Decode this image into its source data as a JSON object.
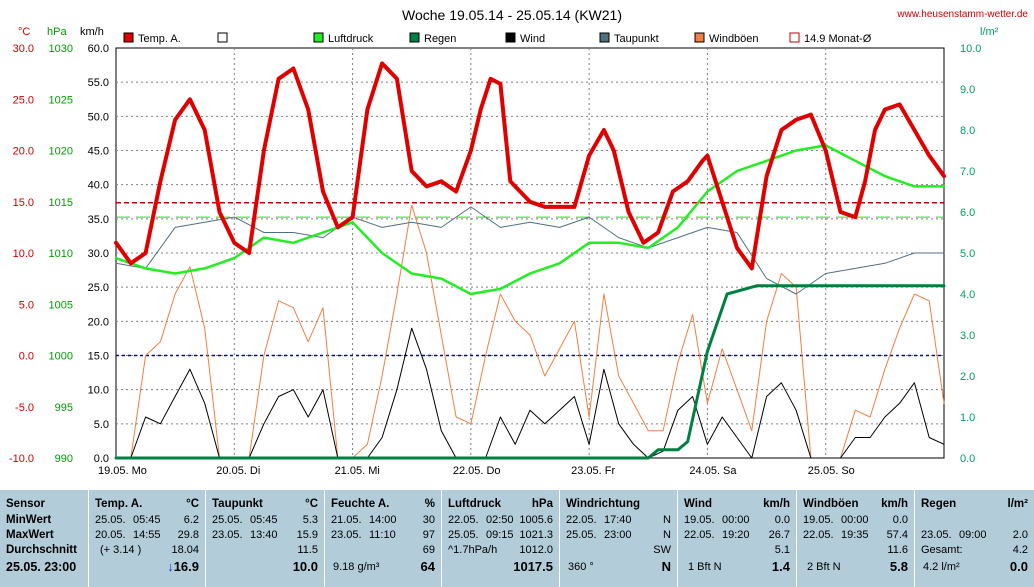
{
  "header": {
    "title": "Woche 19.05.14 - 25.05.14 (KW21)",
    "website": "www.heusenstamm-wetter.de",
    "unit_celsius": "°C",
    "unit_hpa": "hPa",
    "unit_kmh": "km/h",
    "unit_rain": "l/m²"
  },
  "legend": [
    {
      "label": "Temp. A.",
      "color": "#e00000"
    },
    {
      "label": "",
      "color": "#ffffff"
    },
    {
      "label": "Luftdruck",
      "color": "#22ee22"
    },
    {
      "label": "Regen",
      "color": "#008040"
    },
    {
      "label": "Wind",
      "color": "#000000"
    },
    {
      "label": "Taupunkt",
      "color": "#507080"
    },
    {
      "label": "Windböen",
      "color": "#f08040"
    },
    {
      "label": "14.9 Monat-Ø",
      "color": "#ffffff"
    }
  ],
  "chart_data": {
    "type": "line",
    "title": "Woche 19.05.14 - 25.05.14 (KW21)",
    "x_axis": {
      "labels": [
        "19.05. Mo",
        "20.05. Di",
        "21.05. Mi",
        "22.05. Do",
        "23.05. Fr",
        "24.05. Sa",
        "25.05. So"
      ],
      "range_hours": [
        0,
        168
      ]
    },
    "y_axes": {
      "temp_c": {
        "range": [
          -10,
          30
        ],
        "ticks": [
          "30.0",
          "25.0",
          "20.0",
          "15.0",
          "10.0",
          "5.0",
          "0.0",
          "-5.0",
          "-10.0"
        ]
      },
      "pressure_hpa": {
        "range": [
          990,
          1030
        ],
        "ticks": [
          "1030",
          "1025",
          "1020",
          "1015",
          "1010",
          "1005",
          "1000",
          "995",
          "990"
        ]
      },
      "speed_kmh": {
        "range": [
          0,
          60
        ],
        "ticks": [
          "60.0",
          "55.0",
          "50.0",
          "45.0",
          "40.0",
          "35.0",
          "30.0",
          "25.0",
          "20.0",
          "15.0",
          "10.0",
          "5.0",
          "0.0"
        ]
      },
      "rain_lm2": {
        "range": [
          0,
          10
        ],
        "ticks": [
          "10.0",
          "9.0",
          "8.0",
          "7.0",
          "6.0",
          "5.0",
          "4.0",
          "3.0",
          "2.0",
          "1.0",
          "0.0"
        ]
      }
    },
    "reference_lines": [
      {
        "name": "14.9 Monat-Ø",
        "unit": "°C",
        "value": 14.9,
        "color": "#c00000"
      },
      {
        "unit": "hPa",
        "value": 1013.5,
        "color": "#22dd22"
      },
      {
        "unit": "°C",
        "value": 0.0,
        "color": "#0000c0"
      }
    ],
    "series": [
      {
        "name": "Temp. A.",
        "unit": "°C",
        "color": "#e00000",
        "x": [
          0,
          3,
          6,
          9,
          12,
          15,
          18,
          21,
          24,
          27,
          30,
          33,
          36,
          39,
          42,
          45,
          48,
          51,
          54,
          57,
          60,
          63,
          66,
          69,
          72,
          74,
          76,
          78,
          80,
          82,
          84,
          87,
          90,
          93,
          96,
          99,
          101,
          104,
          107,
          110,
          113,
          116,
          119,
          120,
          123,
          126,
          129,
          132,
          135,
          138,
          141,
          144,
          147,
          150,
          152,
          154,
          156,
          159,
          162,
          165,
          168
        ],
        "y": [
          11.0,
          9.0,
          10.0,
          17.0,
          23.0,
          25.0,
          22.0,
          14.0,
          11.0,
          10.0,
          20.0,
          27.0,
          28.0,
          24.0,
          16.0,
          12.5,
          13.5,
          24.0,
          28.5,
          27.0,
          18.0,
          16.5,
          17.0,
          16.0,
          20.0,
          24.0,
          27.0,
          26.5,
          17.0,
          16.0,
          15.0,
          14.5,
          14.5,
          14.5,
          19.5,
          22.0,
          20.0,
          14.0,
          11.0,
          12.0,
          16.0,
          17.0,
          19.0,
          19.5,
          15.0,
          10.5,
          8.5,
          17.5,
          22.0,
          23.0,
          23.5,
          20.0,
          14.0,
          13.5,
          17.0,
          22.0,
          24.0,
          24.5,
          22.0,
          19.5,
          17.5
        ]
      },
      {
        "name": "Luftdruck",
        "unit": "hPa",
        "color": "#22ee22",
        "x": [
          0,
          6,
          12,
          18,
          24,
          30,
          36,
          42,
          48,
          54,
          60,
          66,
          72,
          78,
          84,
          90,
          96,
          102,
          108,
          114,
          120,
          126,
          132,
          138,
          144,
          150,
          156,
          162,
          168
        ],
        "y": [
          1009.5,
          1008.5,
          1008.0,
          1008.5,
          1009.5,
          1011.5,
          1011.0,
          1012.0,
          1013.0,
          1010.0,
          1008.0,
          1007.5,
          1006.0,
          1006.5,
          1008.0,
          1009.0,
          1011.0,
          1011.0,
          1010.5,
          1012.5,
          1016.0,
          1018.0,
          1019.0,
          1020.0,
          1020.5,
          1019.0,
          1017.5,
          1016.5,
          1016.5
        ]
      },
      {
        "name": "Taupunkt",
        "unit": "°C",
        "color": "#507080",
        "x": [
          0,
          6,
          12,
          18,
          24,
          30,
          36,
          42,
          48,
          54,
          60,
          66,
          72,
          78,
          84,
          90,
          96,
          102,
          108,
          114,
          120,
          126,
          132,
          138,
          144,
          150,
          156,
          162,
          168
        ],
        "y": [
          9.0,
          8.5,
          12.5,
          13.0,
          13.5,
          12.0,
          12.0,
          11.5,
          13.5,
          12.5,
          13.0,
          12.5,
          14.5,
          12.5,
          13.0,
          12.5,
          13.5,
          11.5,
          10.5,
          11.5,
          12.5,
          12.0,
          7.5,
          6.0,
          8.0,
          8.5,
          9.0,
          10.0,
          10.0
        ]
      },
      {
        "name": "Wind",
        "unit": "km/h",
        "color": "#000000",
        "x": [
          0,
          3,
          6,
          9,
          12,
          15,
          18,
          21,
          24,
          27,
          30,
          33,
          36,
          39,
          42,
          45,
          48,
          51,
          54,
          57,
          60,
          63,
          66,
          69,
          72,
          75,
          78,
          81,
          84,
          87,
          90,
          93,
          96,
          99,
          102,
          105,
          108,
          111,
          114,
          117,
          120,
          123,
          126,
          129,
          132,
          135,
          138,
          141,
          144,
          147,
          150,
          153,
          156,
          159,
          162,
          165,
          168
        ],
        "y": [
          0,
          0,
          6,
          5,
          9,
          13,
          8,
          0,
          0,
          0,
          5,
          9,
          10,
          6,
          10,
          0,
          0,
          0,
          3,
          10,
          19,
          13,
          4,
          0,
          0,
          0,
          6,
          2,
          7,
          5,
          7,
          9,
          2,
          13,
          5,
          2,
          0,
          1,
          7,
          9,
          2,
          6,
          3,
          0,
          9,
          11,
          7,
          0,
          0,
          0,
          3,
          3,
          6,
          8,
          11,
          3,
          2
        ]
      },
      {
        "name": "Windböen",
        "unit": "km/h",
        "color": "#f08040",
        "x": [
          0,
          3,
          6,
          9,
          12,
          15,
          18,
          21,
          24,
          27,
          30,
          33,
          36,
          39,
          42,
          45,
          48,
          51,
          54,
          57,
          60,
          63,
          66,
          69,
          72,
          75,
          78,
          81,
          84,
          87,
          90,
          93,
          96,
          99,
          102,
          105,
          108,
          111,
          114,
          117,
          120,
          123,
          126,
          129,
          132,
          135,
          138,
          141,
          144,
          147,
          150,
          153,
          156,
          159,
          162,
          165,
          168
        ],
        "y": [
          0,
          0,
          15,
          17,
          24,
          28,
          19,
          0,
          0,
          0,
          15,
          23,
          22,
          17,
          22,
          0,
          0,
          2,
          12,
          24,
          37,
          30,
          18,
          6,
          5,
          15,
          24,
          20,
          18,
          12,
          16,
          20,
          6,
          24,
          12,
          8,
          4,
          4,
          14,
          21,
          8,
          16,
          10,
          4,
          20,
          27,
          25,
          0,
          0,
          0,
          7,
          6,
          13,
          19,
          24,
          23,
          8
        ]
      },
      {
        "name": "Regen",
        "unit": "l/m²",
        "color": "#008040",
        "x": [
          0,
          108,
          110,
          112,
          114,
          116,
          120,
          124,
          130,
          140,
          150,
          160,
          168
        ],
        "y": [
          0,
          0,
          0.2,
          0.2,
          0.2,
          0.4,
          2.6,
          4.0,
          4.2,
          4.2,
          4.2,
          4.2,
          4.2
        ]
      }
    ]
  },
  "panel": {
    "sensor": {
      "header": "Sensor",
      "min": "MinWert",
      "max": "MaxWert",
      "avg": "Durchschnitt",
      "now": "25.05. 23:00"
    },
    "temp": {
      "header": "Temp. A.",
      "unit": "°C",
      "min_date": "25.05.",
      "min_time": "05:45",
      "min_val": "6.2",
      "max_date": "20.05.",
      "max_time": "14:55",
      "max_val": "29.8",
      "avg_note": "(+ 3.14 )",
      "avg_val": "18.04",
      "trend": "↓",
      "now": "16.9"
    },
    "dew": {
      "header": "Taupunkt",
      "unit": "°C",
      "min_date": "25.05.",
      "min_time": "05:45",
      "min_val": "5.3",
      "max_date": "23.05.",
      "max_time": "13:40",
      "max_val": "15.9",
      "avg_val": "11.5",
      "now": "10.0"
    },
    "hum": {
      "header": "Feuchte A.",
      "unit": "%",
      "min_date": "21.05.",
      "min_time": "14:00",
      "min_val": "30",
      "max_date": "23.05.",
      "max_time": "11:10",
      "max_val": "97",
      "avg_val": "69",
      "abs": "9.18 g/m³",
      "now": "64"
    },
    "press": {
      "header": "Luftdruck",
      "unit": "hPa",
      "min_date": "22.05.",
      "min_time": "02:50",
      "min_val": "1005.6",
      "max_date": "25.05.",
      "max_time": "09:15",
      "max_val": "1021.3",
      "avg_note": "^1.7hPa/h",
      "avg_val": "1012.0",
      "now": "1017.5"
    },
    "dir": {
      "header": "Windrichtung",
      "min_date": "22.05.",
      "min_time": "17:40",
      "min_val": "N",
      "max_date": "25.05.",
      "max_time": "23:00",
      "max_val": "N",
      "avg_val": "SW",
      "now_deg": "360 °",
      "now": "N"
    },
    "wind": {
      "header": "Wind",
      "unit": "km/h",
      "min_date": "19.05.",
      "min_time": "00:00",
      "min_val": "0.0",
      "max_date": "22.05.",
      "max_time": "19:20",
      "max_val": "26.7",
      "avg_val": "5.1",
      "bft": "1 Bft N",
      "now": "1.4"
    },
    "gust": {
      "header": "Windböen",
      "unit": "km/h",
      "min_date": "19.05.",
      "min_time": "00:00",
      "min_val": "0.0",
      "max_date": "22.05.",
      "max_time": "19:35",
      "max_val": "57.4",
      "avg_val": "11.6",
      "bft": "2 Bft N",
      "now": "5.8"
    },
    "rain": {
      "header": "Regen",
      "unit": "l/m²",
      "max_date": "23.05.",
      "max_time": "09:00",
      "max_val": "2.0",
      "total_label": "Gesamt:",
      "total_val": "4.2",
      "recent": "4.2 l/m²",
      "now": "0.0"
    }
  }
}
